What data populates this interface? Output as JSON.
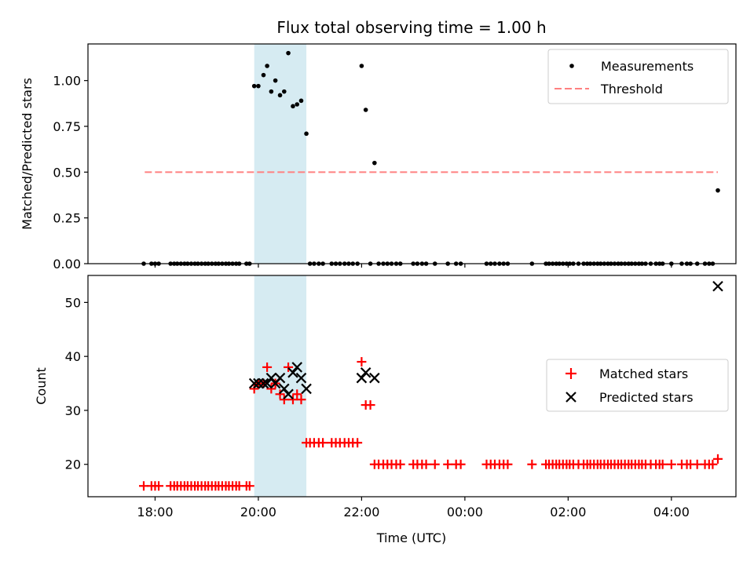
{
  "chart_data": [
    {
      "type": "scatter",
      "title": "Flux total observing time = 1.00 h",
      "xlabel": "",
      "ylabel": "Matched/Predicted stars",
      "ylim": [
        0,
        1.2
      ],
      "yticks": [
        0.0,
        0.25,
        0.5,
        0.75,
        1.0
      ],
      "ytick_labels": [
        "0.00",
        "0.25",
        "0.50",
        "0.75",
        "1.00"
      ],
      "highlight_span": [
        19.92,
        20.93
      ],
      "legend": {
        "position": "top-right",
        "entries": [
          "Measurements",
          "Threshold"
        ]
      },
      "threshold": {
        "name": "Threshold",
        "value": 0.5,
        "x_range": [
          17.8,
          28.9
        ],
        "color": "#ff8080"
      },
      "series": [
        {
          "name": "Measurements",
          "color": "#000000",
          "x": [
            17.78,
            17.93,
            18.0,
            18.07,
            18.3,
            18.37,
            18.43,
            18.5,
            18.57,
            18.63,
            18.7,
            18.77,
            18.83,
            18.9,
            18.97,
            19.03,
            19.1,
            19.17,
            19.23,
            19.3,
            19.37,
            19.43,
            19.5,
            19.57,
            19.63,
            19.77,
            19.83,
            19.92,
            20.0,
            20.1,
            20.17,
            20.25,
            20.33,
            20.42,
            20.5,
            20.58,
            20.67,
            20.75,
            20.83,
            20.93,
            21.0,
            21.08,
            21.17,
            21.25,
            21.42,
            21.5,
            21.58,
            21.67,
            21.75,
            21.83,
            21.92,
            22.0,
            22.08,
            22.17,
            22.25,
            22.33,
            22.42,
            22.5,
            22.58,
            22.67,
            22.75,
            23.0,
            23.08,
            23.17,
            23.25,
            23.42,
            23.67,
            23.83,
            23.92,
            24.42,
            24.5,
            24.58,
            24.67,
            24.75,
            24.83,
            25.3,
            25.57,
            25.63,
            25.7,
            25.77,
            25.83,
            25.9,
            25.97,
            26.03,
            26.1,
            26.2,
            26.3,
            26.37,
            26.43,
            26.5,
            26.57,
            26.63,
            26.7,
            26.77,
            26.83,
            26.9,
            26.97,
            27.03,
            27.1,
            27.17,
            27.23,
            27.3,
            27.37,
            27.43,
            27.5,
            27.6,
            27.7,
            27.77,
            27.83,
            28.0,
            28.2,
            28.3,
            28.37,
            28.5,
            28.65,
            28.73,
            28.8,
            28.9
          ],
          "y": [
            0,
            0,
            0,
            0,
            0,
            0,
            0,
            0,
            0,
            0,
            0,
            0,
            0,
            0,
            0,
            0,
            0,
            0,
            0,
            0,
            0,
            0,
            0,
            0,
            0,
            0,
            0,
            0.97,
            0.97,
            1.03,
            1.08,
            0.94,
            1.0,
            0.92,
            0.94,
            1.15,
            0.86,
            0.87,
            0.89,
            0.71,
            0,
            0,
            0,
            0,
            0,
            0,
            0,
            0,
            0,
            0,
            0,
            1.08,
            0.84,
            0,
            0.55,
            0,
            0,
            0,
            0,
            0,
            0,
            0,
            0,
            0,
            0,
            0,
            0,
            0,
            0,
            0,
            0,
            0,
            0,
            0,
            0,
            0,
            0,
            0,
            0,
            0,
            0,
            0,
            0,
            0,
            0,
            0,
            0,
            0,
            0,
            0,
            0,
            0,
            0,
            0,
            0,
            0,
            0,
            0,
            0,
            0,
            0,
            0,
            0,
            0,
            0,
            0,
            0,
            0,
            0,
            0,
            0,
            0,
            0,
            0,
            0,
            0,
            0,
            0.4
          ]
        }
      ]
    },
    {
      "type": "scatter",
      "title": "",
      "xlabel": "Time (UTC)",
      "ylabel": "Count",
      "ylim": [
        14,
        55
      ],
      "yticks": [
        20,
        30,
        40,
        50
      ],
      "ytick_labels": [
        "20",
        "30",
        "40",
        "50"
      ],
      "xlim": [
        16.7,
        29.25
      ],
      "xticks": [
        18,
        20,
        22,
        24,
        26,
        28
      ],
      "xtick_labels": [
        "18:00",
        "20:00",
        "22:00",
        "00:00",
        "02:00",
        "04:00"
      ],
      "highlight_span": [
        19.92,
        20.93
      ],
      "legend": {
        "position": "center-right",
        "entries": [
          "Matched stars",
          "Predicted stars"
        ]
      },
      "series": [
        {
          "name": "Matched stars",
          "marker": "+",
          "color": "#ff0000",
          "x": [
            17.78,
            17.93,
            18.0,
            18.07,
            18.3,
            18.37,
            18.43,
            18.5,
            18.57,
            18.63,
            18.7,
            18.77,
            18.83,
            18.9,
            18.97,
            19.03,
            19.1,
            19.17,
            19.23,
            19.3,
            19.37,
            19.43,
            19.5,
            19.57,
            19.63,
            19.77,
            19.83,
            19.92,
            20.0,
            20.1,
            20.17,
            20.25,
            20.33,
            20.42,
            20.5,
            20.58,
            20.67,
            20.75,
            20.83,
            20.93,
            21.0,
            21.08,
            21.17,
            21.25,
            21.42,
            21.5,
            21.58,
            21.67,
            21.75,
            21.83,
            21.92,
            22.0,
            22.08,
            22.17,
            22.25,
            22.33,
            22.42,
            22.5,
            22.58,
            22.67,
            22.75,
            23.0,
            23.08,
            23.17,
            23.25,
            23.42,
            23.67,
            23.83,
            23.92,
            24.42,
            24.5,
            24.58,
            24.67,
            24.75,
            24.83,
            25.3,
            25.57,
            25.63,
            25.7,
            25.77,
            25.83,
            25.9,
            25.97,
            26.03,
            26.1,
            26.2,
            26.3,
            26.37,
            26.43,
            26.5,
            26.57,
            26.63,
            26.7,
            26.77,
            26.83,
            26.9,
            26.97,
            27.03,
            27.1,
            27.17,
            27.23,
            27.3,
            27.37,
            27.43,
            27.5,
            27.6,
            27.7,
            27.77,
            27.83,
            28.0,
            28.2,
            28.3,
            28.37,
            28.5,
            28.65,
            28.73,
            28.8,
            28.9
          ],
          "y": [
            16,
            16,
            16,
            16,
            16,
            16,
            16,
            16,
            16,
            16,
            16,
            16,
            16,
            16,
            16,
            16,
            16,
            16,
            16,
            16,
            16,
            16,
            16,
            16,
            16,
            16,
            16,
            34,
            35,
            35,
            38,
            34,
            35,
            33,
            32,
            38,
            32,
            33,
            32,
            24,
            24,
            24,
            24,
            24,
            24,
            24,
            24,
            24,
            24,
            24,
            24,
            39,
            31,
            31,
            20,
            20,
            20,
            20,
            20,
            20,
            20,
            20,
            20,
            20,
            20,
            20,
            20,
            20,
            20,
            20,
            20,
            20,
            20,
            20,
            20,
            20,
            20,
            20,
            20,
            20,
            20,
            20,
            20,
            20,
            20,
            20,
            20,
            20,
            20,
            20,
            20,
            20,
            20,
            20,
            20,
            20,
            20,
            20,
            20,
            20,
            20,
            20,
            20,
            20,
            20,
            20,
            20,
            20,
            20,
            20,
            20,
            20,
            20,
            20,
            20,
            20,
            20,
            21
          ]
        },
        {
          "name": "Predicted stars",
          "marker": "x",
          "color": "#000000",
          "x": [
            19.92,
            20.0,
            20.1,
            20.17,
            20.25,
            20.33,
            20.42,
            20.5,
            20.58,
            20.67,
            20.75,
            20.83,
            20.93,
            22.0,
            22.08,
            22.25,
            28.9
          ],
          "y": [
            35,
            35,
            35,
            35,
            36,
            35,
            36,
            34,
            33,
            37,
            38,
            36,
            34,
            36,
            37,
            36,
            53
          ]
        }
      ]
    }
  ]
}
